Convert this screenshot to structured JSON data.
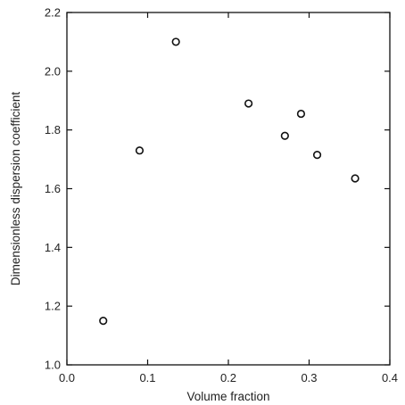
{
  "chart_data": {
    "type": "scatter",
    "title": "",
    "xlabel": "Volume fraction",
    "ylabel": "Dimensionless dispersion coefficient",
    "xlim": [
      0.0,
      0.4
    ],
    "ylim": [
      1.0,
      2.2
    ],
    "x_ticks": [
      "0.0",
      "0.1",
      "0.2",
      "0.3",
      "0.4"
    ],
    "y_ticks": [
      "1.0",
      "1.2",
      "1.4",
      "1.6",
      "1.8",
      "2.0",
      "2.2"
    ],
    "grid": false,
    "marker": "open-circle",
    "series": [
      {
        "points": [
          {
            "x": 0.045,
            "y": 1.15
          },
          {
            "x": 0.09,
            "y": 1.73
          },
          {
            "x": 0.135,
            "y": 2.1
          },
          {
            "x": 0.225,
            "y": 1.89
          },
          {
            "x": 0.27,
            "y": 1.78
          },
          {
            "x": 0.29,
            "y": 1.855
          },
          {
            "x": 0.31,
            "y": 1.715
          },
          {
            "x": 0.357,
            "y": 1.635
          }
        ]
      }
    ]
  }
}
